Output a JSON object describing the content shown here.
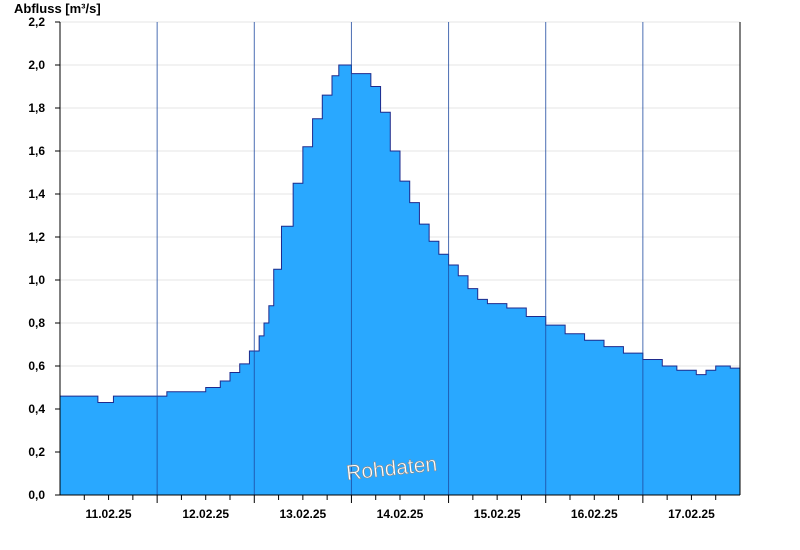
{
  "chart_data": {
    "type": "area",
    "ylabel": "Abfluss [m³/s]",
    "ylim": [
      0,
      2.2
    ],
    "yticks": [
      "0,0",
      "0,2",
      "0,4",
      "0,6",
      "0,8",
      "1,0",
      "1,2",
      "1,4",
      "1,6",
      "1,8",
      "2,0",
      "2,2"
    ],
    "xlim": [
      0,
      7
    ],
    "xtick_labels": [
      "11.02.25",
      "12.02.25",
      "13.02.25",
      "14.02.25",
      "15.02.25",
      "16.02.25",
      "17.02.25"
    ],
    "day_boundaries": [
      1,
      2,
      3,
      4,
      5,
      6
    ],
    "grid": true,
    "fill_color": "#29a8ff",
    "line_color": "#1e2a8c",
    "watermark": "Rohdaten",
    "series": [
      {
        "x": [
          0.0,
          0.39,
          0.55,
          0.9,
          1.1,
          1.25,
          1.5,
          1.65,
          1.75,
          1.85,
          1.95,
          2.05,
          2.1,
          2.15,
          2.2,
          2.28,
          2.4,
          2.5,
          2.6,
          2.7,
          2.8,
          2.87,
          2.93,
          3.0,
          3.1,
          3.2,
          3.3,
          3.4,
          3.5,
          3.6,
          3.7,
          3.8,
          3.9,
          4.0,
          4.1,
          4.2,
          4.3,
          4.4,
          4.5,
          4.6,
          4.8,
          5.0,
          5.2,
          5.4,
          5.6,
          5.8,
          6.0,
          6.2,
          6.35,
          6.55,
          6.65,
          6.75,
          6.9,
          7.0
        ],
        "y": [
          0.46,
          0.43,
          0.46,
          0.46,
          0.48,
          0.48,
          0.5,
          0.53,
          0.57,
          0.61,
          0.67,
          0.74,
          0.8,
          0.88,
          1.05,
          1.25,
          1.45,
          1.62,
          1.75,
          1.86,
          1.95,
          2.0,
          2.0,
          1.96,
          1.96,
          1.9,
          1.78,
          1.6,
          1.46,
          1.36,
          1.26,
          1.18,
          1.12,
          1.07,
          1.02,
          0.96,
          0.91,
          0.89,
          0.89,
          0.87,
          0.83,
          0.79,
          0.75,
          0.72,
          0.69,
          0.66,
          0.63,
          0.6,
          0.58,
          0.56,
          0.58,
          0.6,
          0.59,
          0.56
        ]
      }
    ]
  }
}
